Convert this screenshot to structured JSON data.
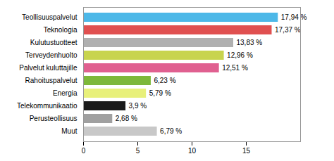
{
  "chart_data": {
    "type": "bar",
    "orientation": "horizontal",
    "categories": [
      "Muut",
      "Perusteollisuus",
      "Telekommunikaatio",
      "Energia",
      "Rahoituspalvelut",
      "Palvelut kuluttajille",
      "Terveydenhuolto",
      "Kulutustuotteet",
      "Teknologia",
      "Teollisuuspalvelut"
    ],
    "values": [
      6.79,
      2.68,
      3.9,
      5.79,
      6.23,
      12.51,
      12.96,
      13.83,
      17.37,
      17.94
    ],
    "value_labels": [
      "6,79 %",
      "2,68 %",
      "3,9 %",
      "5,79 %",
      "6,23 %",
      "12,51 %",
      "12,96 %",
      "13,83 %",
      "17,37 %",
      "17,94 %"
    ],
    "colors": [
      "#c8c8c8",
      "#a0a0a0",
      "#1a1a1a",
      "#e8f07a",
      "#7db83a",
      "#e06090",
      "#c8d44e",
      "#b0b0b0",
      "#e05050",
      "#4db8e8"
    ],
    "xlim": [
      0,
      20
    ],
    "xticks": [
      0,
      5,
      10,
      15
    ],
    "data_labels": true
  }
}
